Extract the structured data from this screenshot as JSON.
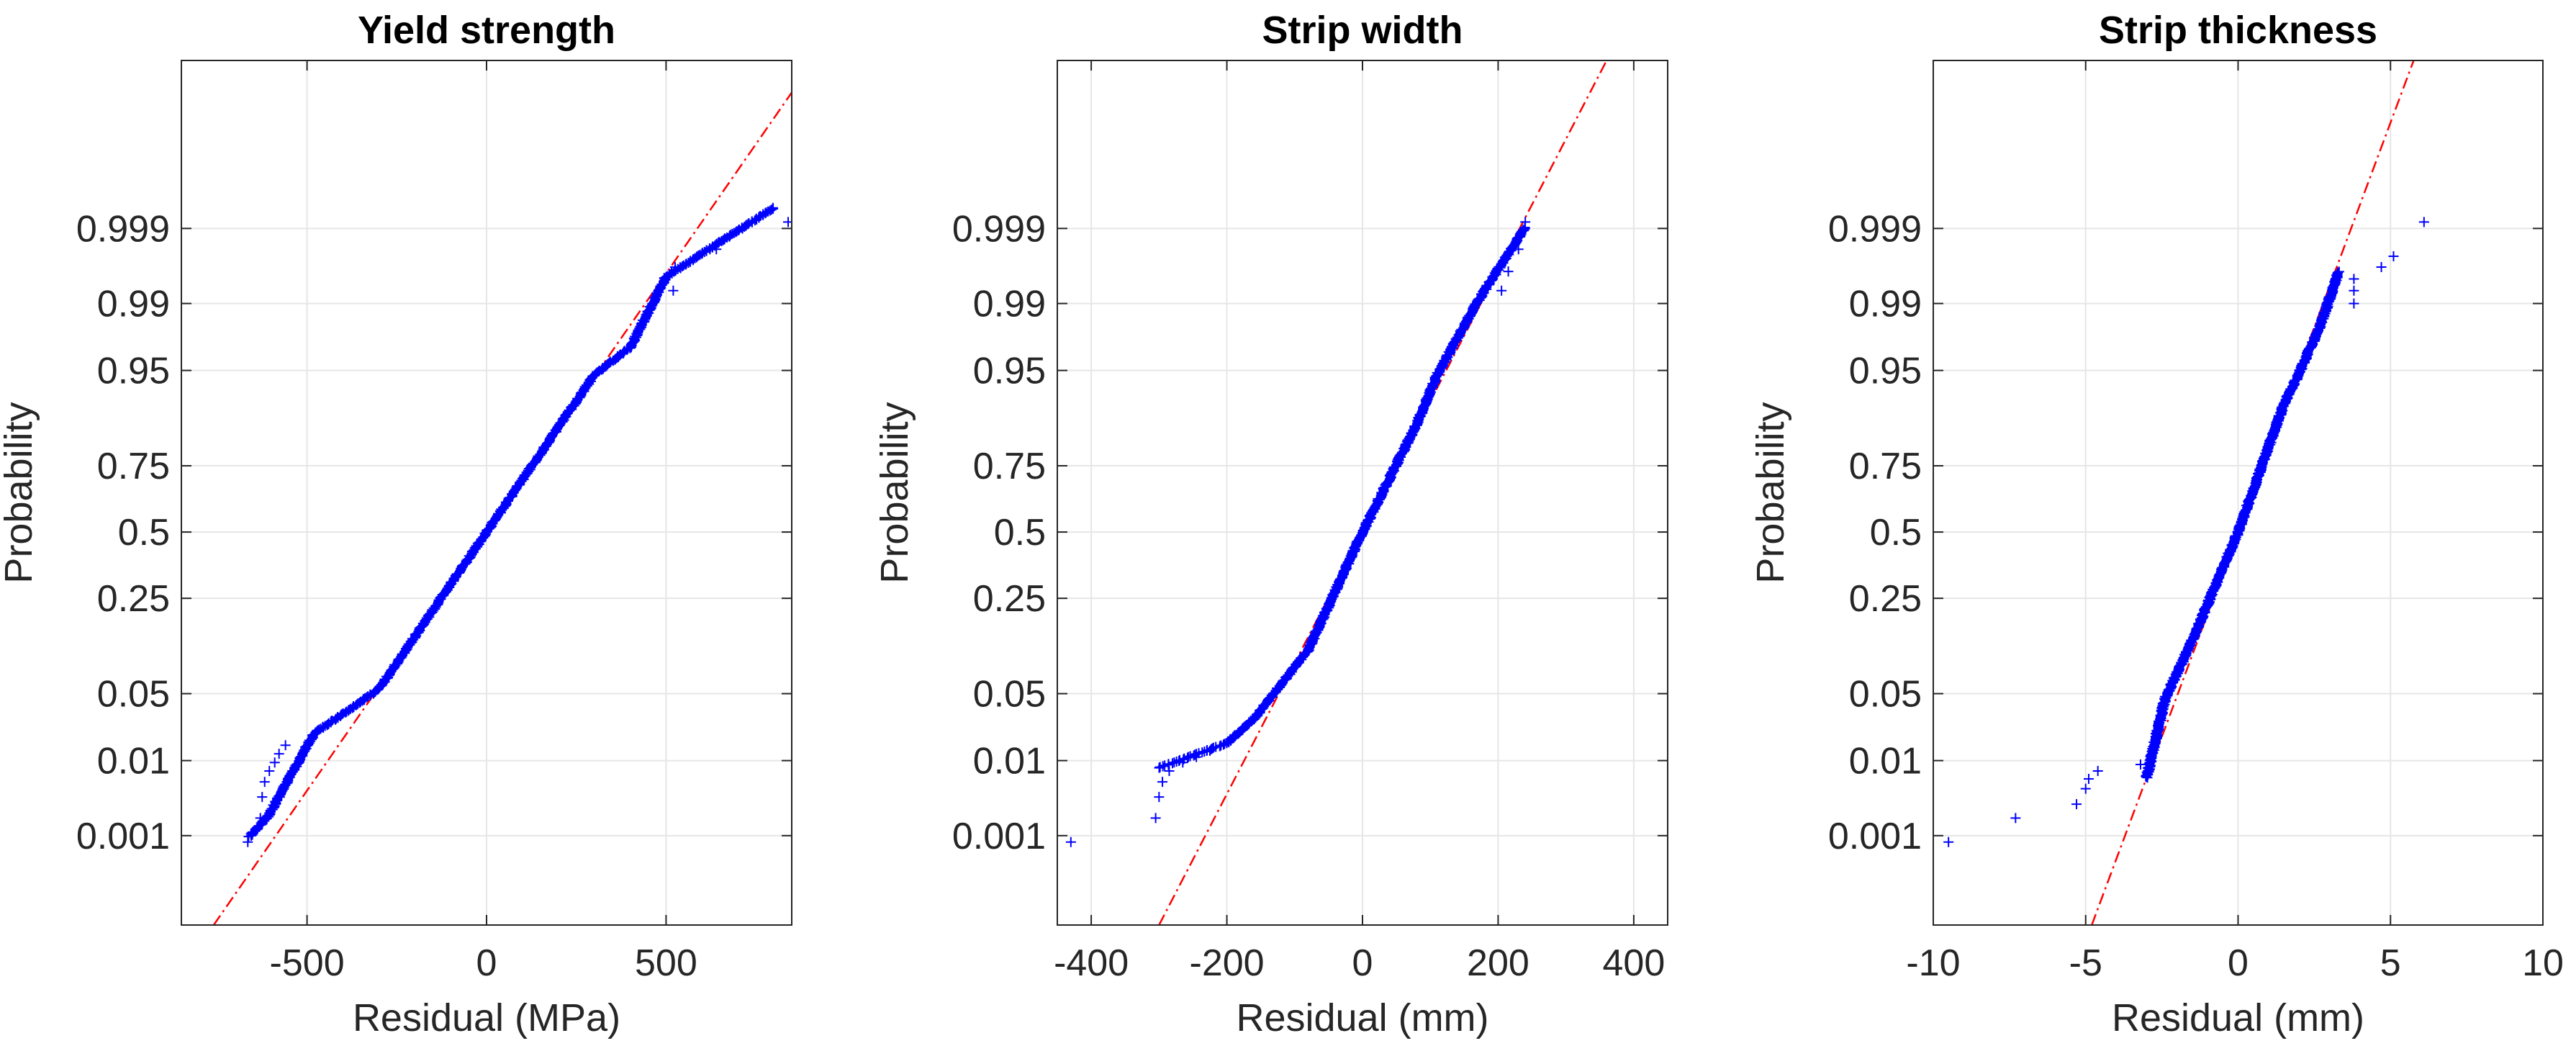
{
  "chart_data": [
    {
      "type": "scatter",
      "subtype": "normal-probability-plot",
      "title": "Yield strength",
      "xlabel": "Residual (MPa)",
      "ylabel": "Probability",
      "xlim": [
        -850,
        850
      ],
      "ylim_z": [
        -4.0,
        4.8
      ],
      "xticks": [
        -500,
        0,
        500
      ],
      "xtick_labels": [
        "-500",
        "0",
        "500"
      ],
      "yticks": [
        0.001,
        0.01,
        0.05,
        0.25,
        0.5,
        0.75,
        0.95,
        0.99,
        0.999
      ],
      "ytick_labels": [
        "0.001",
        "0.01",
        "0.05",
        "0.25",
        "0.5",
        "0.75",
        "0.95",
        "0.99",
        "0.999"
      ],
      "grid": true,
      "reference_line": {
        "mean": 0,
        "sigma": 190,
        "color": "#ff0000"
      },
      "marker_color": "#0000ff",
      "profile": {
        "x": [
          -660,
          -610,
          -480,
          -300,
          0,
          300,
          400,
          500,
          800
        ],
        "z": [
          -3.1,
          -2.9,
          -2.05,
          -1.6,
          0,
          1.6,
          1.88,
          2.6,
          3.3
        ]
      },
      "tail_points": [
        {
          "x": -665,
          "p": 0.0008
        },
        {
          "x": -630,
          "p": 0.0018
        },
        {
          "x": -625,
          "p": 0.0035
        },
        {
          "x": -618,
          "p": 0.0055
        },
        {
          "x": -605,
          "p": 0.0075
        },
        {
          "x": -590,
          "p": 0.0095
        },
        {
          "x": -578,
          "p": 0.012
        },
        {
          "x": -560,
          "p": 0.015
        },
        {
          "x": 520,
          "p": 0.993
        },
        {
          "x": 525,
          "p": 0.9965
        },
        {
          "x": 640,
          "p": 0.998
        },
        {
          "x": 840,
          "p": 0.9992
        }
      ]
    },
    {
      "type": "scatter",
      "subtype": "normal-probability-plot",
      "title": "Strip width",
      "xlabel": "Residual (mm)",
      "ylabel": "Probability",
      "xlim": [
        -450,
        450
      ],
      "ylim_z": [
        -4.0,
        4.8
      ],
      "xticks": [
        -400,
        -200,
        0,
        200,
        400
      ],
      "xtick_labels": [
        "-400",
        "-200",
        "0",
        "200",
        "400"
      ],
      "yticks": [
        0.001,
        0.01,
        0.05,
        0.25,
        0.5,
        0.75,
        0.95,
        0.99,
        0.999
      ],
      "ytick_labels": [
        "0.001",
        "0.01",
        "0.05",
        "0.25",
        "0.5",
        "0.75",
        "0.95",
        "0.99",
        "0.999"
      ],
      "grid": true,
      "reference_line": {
        "mean": 0,
        "sigma": 75,
        "color": "#ff0000"
      },
      "marker_color": "#0000ff",
      "profile": {
        "x": [
          -300,
          -200,
          -160,
          -80,
          0,
          80,
          110,
          170,
          240
        ],
        "z": [
          -2.4,
          -2.15,
          -1.9,
          -1.2,
          0,
          1.1,
          1.6,
          2.35,
          3.1
        ]
      },
      "tail_points": [
        {
          "x": -430,
          "p": 0.0008
        },
        {
          "x": -305,
          "p": 0.0018
        },
        {
          "x": -300,
          "p": 0.0035
        },
        {
          "x": -295,
          "p": 0.0055
        },
        {
          "x": -285,
          "p": 0.0075
        },
        {
          "x": -265,
          "p": 0.0095
        },
        {
          "x": -245,
          "p": 0.011
        },
        {
          "x": -225,
          "p": 0.013
        },
        {
          "x": 205,
          "p": 0.993
        },
        {
          "x": 215,
          "p": 0.996
        },
        {
          "x": 230,
          "p": 0.998
        },
        {
          "x": 240,
          "p": 0.9992
        }
      ]
    },
    {
      "type": "scatter",
      "subtype": "normal-probability-plot",
      "title": "Strip thickness",
      "xlabel": "Residual (mm)",
      "ylabel": "Probability",
      "xlim": [
        -10,
        10
      ],
      "ylim_z": [
        -4.0,
        4.8
      ],
      "xticks": [
        -10,
        -5,
        0,
        5,
        10
      ],
      "xtick_labels": [
        "-10",
        "-5",
        "0",
        "5",
        "10"
      ],
      "yticks": [
        0.001,
        0.01,
        0.05,
        0.25,
        0.5,
        0.75,
        0.95,
        0.99,
        0.999
      ],
      "ytick_labels": [
        "0.001",
        "0.01",
        "0.05",
        "0.25",
        "0.5",
        "0.75",
        "0.95",
        "0.99",
        "0.999"
      ],
      "grid": true,
      "reference_line": {
        "mean": 0,
        "sigma": 1.2,
        "color": "#ff0000"
      },
      "marker_color": "#0000ff",
      "profile": {
        "x": [
          -3,
          -2.4,
          -1.5,
          0,
          1.5,
          1.9,
          2.7,
          3.3
        ],
        "z": [
          -2.5,
          -1.7,
          -1.1,
          0,
          1.3,
          1.55,
          2.1,
          2.65
        ]
      },
      "tail_points": [
        {
          "x": -9.5,
          "p": 0.0008
        },
        {
          "x": -7.3,
          "p": 0.0018
        },
        {
          "x": -5.3,
          "p": 0.0028
        },
        {
          "x": -5.0,
          "p": 0.0045
        },
        {
          "x": -4.9,
          "p": 0.006
        },
        {
          "x": -4.6,
          "p": 0.0075
        },
        {
          "x": -3.2,
          "p": 0.009
        },
        {
          "x": 3.8,
          "p": 0.99
        },
        {
          "x": 3.8,
          "p": 0.993
        },
        {
          "x": 3.8,
          "p": 0.995
        },
        {
          "x": 4.7,
          "p": 0.9965
        },
        {
          "x": 5.1,
          "p": 0.9975
        },
        {
          "x": 6.1,
          "p": 0.9992
        }
      ]
    }
  ]
}
